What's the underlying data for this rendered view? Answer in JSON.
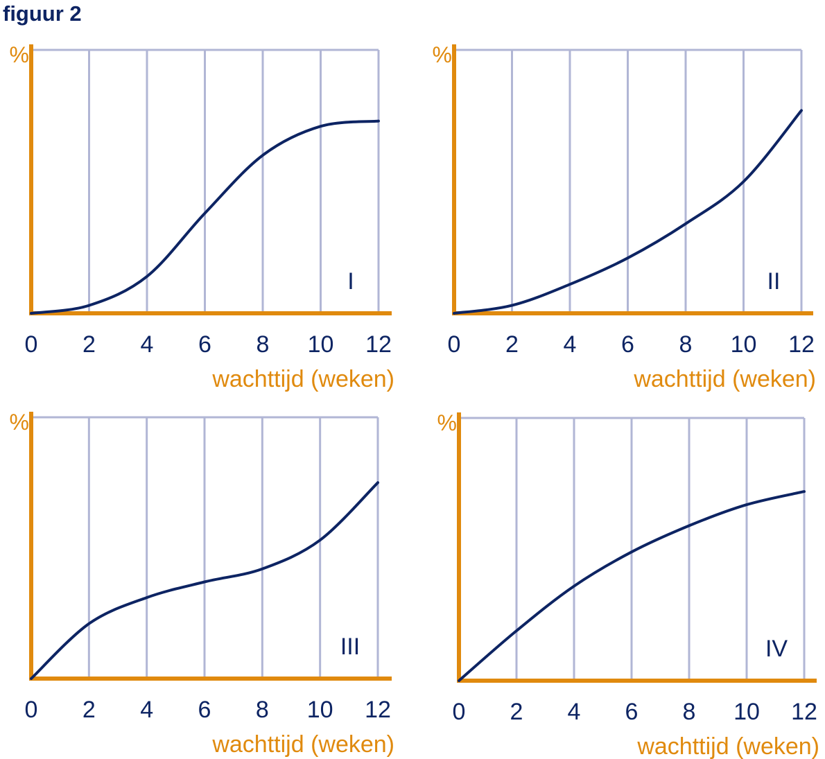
{
  "figure_title": "figuur 2",
  "colors": {
    "axis": "#e08a0e",
    "grid": "#b1b6d5",
    "curve": "#0d2463",
    "text": "#0d2463"
  },
  "chart_data": [
    {
      "type": "line",
      "label": "I",
      "ylabel": "%",
      "xlabel": "wachttijd (weken)",
      "xticks": [
        "0",
        "2",
        "4",
        "6",
        "8",
        "10",
        "12"
      ],
      "xlim": [
        0,
        12
      ],
      "ylim": [
        0,
        100
      ],
      "grid": true,
      "series": [
        {
          "x": [
            0,
            2,
            4,
            6,
            8,
            10,
            12
          ],
          "y": [
            0,
            3,
            14,
            38,
            60,
            71,
            73
          ]
        }
      ]
    },
    {
      "type": "line",
      "label": "II",
      "ylabel": "%",
      "xlabel": "wachttijd (weken)",
      "xticks": [
        "0",
        "2",
        "4",
        "6",
        "8",
        "10",
        "12"
      ],
      "xlim": [
        0,
        12
      ],
      "ylim": [
        0,
        100
      ],
      "grid": true,
      "series": [
        {
          "x": [
            0,
            2,
            4,
            6,
            8,
            10,
            12
          ],
          "y": [
            0,
            3,
            11,
            21,
            34,
            50,
            77
          ]
        }
      ]
    },
    {
      "type": "line",
      "label": "III",
      "ylabel": "%",
      "xlabel": "wachttijd (weken)",
      "xticks": [
        "0",
        "2",
        "4",
        "6",
        "8",
        "10",
        "12"
      ],
      "xlim": [
        0,
        12
      ],
      "ylim": [
        0,
        100
      ],
      "grid": true,
      "series": [
        {
          "x": [
            0,
            2,
            4,
            6,
            8,
            10,
            12
          ],
          "y": [
            0,
            21,
            31,
            37,
            42,
            53,
            75
          ]
        }
      ]
    },
    {
      "type": "line",
      "label": "IV",
      "ylabel": "%",
      "xlabel": "wachttijd (weken)",
      "xticks": [
        "0",
        "2",
        "4",
        "6",
        "8",
        "10",
        "12"
      ],
      "xlim": [
        0,
        12
      ],
      "ylim": [
        0,
        100
      ],
      "grid": true,
      "series": [
        {
          "x": [
            0,
            2,
            4,
            6,
            8,
            10,
            12
          ],
          "y": [
            0,
            19,
            36,
            49,
            59,
            67,
            72
          ]
        }
      ]
    }
  ]
}
